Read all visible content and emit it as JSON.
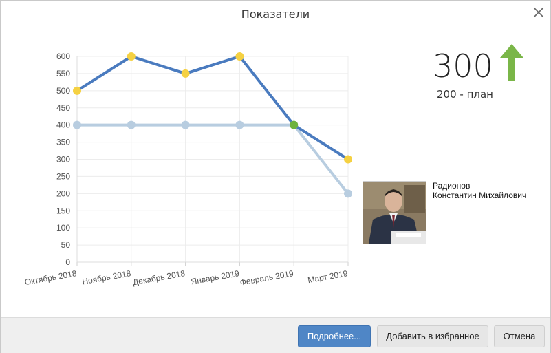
{
  "dialog": {
    "title": "Показатели"
  },
  "kpi": {
    "value": "300",
    "plan": "200 - план",
    "trend": "up",
    "trend_color": "#7ab648"
  },
  "person": {
    "line1": "Радионов",
    "line2": "Константин Михайлович"
  },
  "footer": {
    "details_label": "Подробнее...",
    "favorite_label": "Добавить в избранное",
    "cancel_label": "Отмена"
  },
  "chart_data": {
    "type": "line",
    "categories": [
      "Октябрь 2018",
      "Ноябрь 2018",
      "Декабрь 2018",
      "Январь 2019",
      "Февраль 2019",
      "Март 2019"
    ],
    "series": [
      {
        "values": [
          500,
          600,
          550,
          600,
          400,
          300
        ],
        "color": "#4a7bbf",
        "point_color": "#f5d142"
      },
      {
        "values": [
          400,
          400,
          400,
          400,
          400,
          200
        ],
        "color": "#b8cde0",
        "point_color": "#b8cde0"
      }
    ],
    "highlight": {
      "category_index": 4,
      "color": "#6db33f"
    },
    "y_ticks": [
      0,
      50,
      100,
      150,
      200,
      250,
      300,
      350,
      400,
      450,
      500,
      550,
      600
    ],
    "ylim": [
      0,
      600
    ],
    "grid": true,
    "legend": "none"
  }
}
